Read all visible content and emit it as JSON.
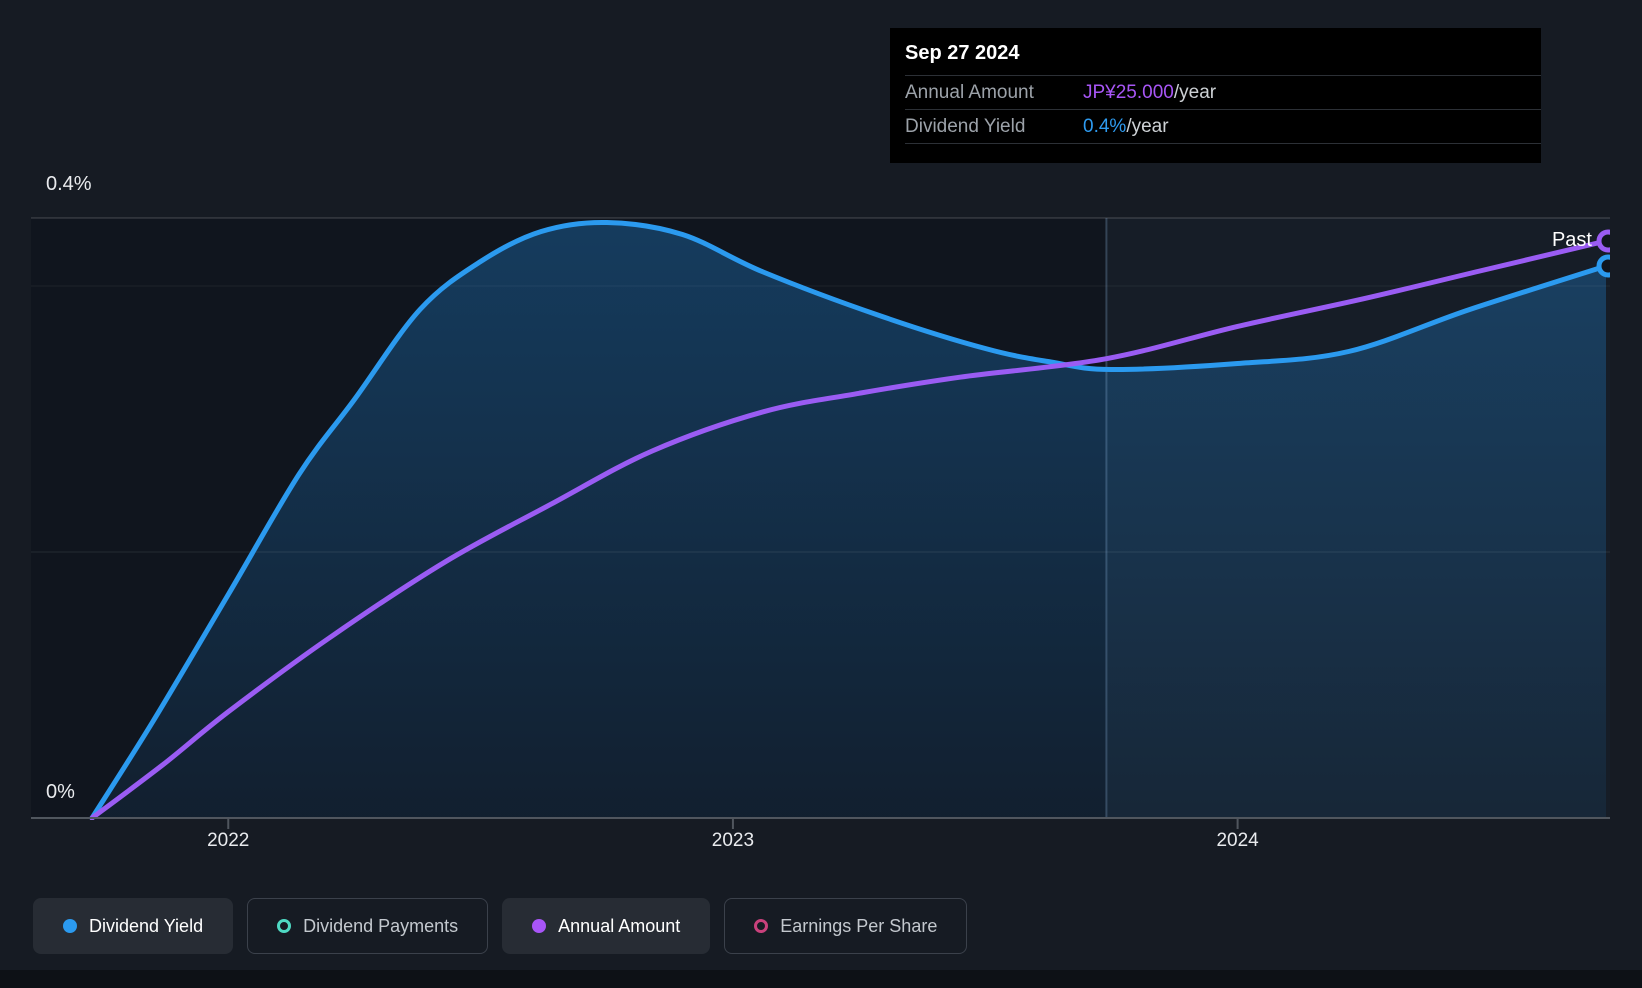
{
  "y_axis": {
    "top_label": "0.4%",
    "bottom_label": "0%"
  },
  "past_label": "Past",
  "tooltip": {
    "date": "Sep 27 2024",
    "rows": [
      {
        "label": "Annual Amount",
        "value": "JP¥25.000",
        "suffix": "/year",
        "color": "#A856F6"
      },
      {
        "label": "Dividend Yield",
        "value": "0.4%",
        "suffix": "/year",
        "color": "#2E9BF0"
      }
    ]
  },
  "legend": [
    {
      "label": "Dividend Yield",
      "color": "#2B9AEF",
      "style": "filled",
      "active": true
    },
    {
      "label": "Dividend Payments",
      "color": "#4FD9C3",
      "style": "ring",
      "active": false
    },
    {
      "label": "Annual Amount",
      "color": "#A855F7",
      "style": "filled",
      "active": true
    },
    {
      "label": "Earnings Per Share",
      "color": "#C9417C",
      "style": "ring",
      "active": false
    }
  ],
  "colors": {
    "background": "#161B23",
    "plot_background": "#10151E",
    "blue_line": "#2E9AEC",
    "purple_line": "#9A5CF3",
    "tooltip_bg": "#000000"
  },
  "chart_data": {
    "type": "line",
    "x_unit": "decimal_year",
    "xlim": [
      2021.73,
      2024.73
    ],
    "x_ticks": [
      2022,
      2023,
      2024
    ],
    "left_axis": {
      "min": 0,
      "max": 0.4,
      "unit": "%",
      "labels_shown": [
        "0%",
        "0.4%"
      ]
    },
    "right_axis": {
      "min": 0,
      "end_value": 25.0,
      "unit": "JP¥/year"
    },
    "series": [
      {
        "name": "Dividend Yield",
        "color": "#2B9AEF",
        "axis": "left",
        "unit": "%",
        "area_fill": true,
        "x": [
          2021.73,
          2021.85,
          2022.0,
          2022.14,
          2022.25,
          2022.38,
          2022.5,
          2022.62,
          2022.75,
          2022.9,
          2023.06,
          2023.29,
          2023.5,
          2023.63,
          2023.75,
          2024.0,
          2024.22,
          2024.46,
          2024.73
        ],
        "values": [
          0,
          0.064,
          0.149,
          0.229,
          0.279,
          0.339,
          0.371,
          0.391,
          0.397,
          0.389,
          0.364,
          0.335,
          0.313,
          0.304,
          0.299,
          0.303,
          0.311,
          0.339,
          0.368
        ]
      },
      {
        "name": "Annual Amount",
        "color": "#9A5CF3",
        "axis": "right",
        "unit": "JP¥/year",
        "area_fill": false,
        "x": [
          2021.73,
          2021.87,
          2022.0,
          2022.2,
          2022.43,
          2022.64,
          2022.84,
          2023.06,
          2023.25,
          2023.45,
          2023.74,
          2024.0,
          2024.25,
          2024.48,
          2024.73
        ],
        "values": [
          0,
          2.3,
          4.6,
          7.8,
          11.1,
          13.6,
          15.9,
          17.6,
          18.4,
          19.1,
          19.9,
          21.3,
          22.5,
          23.7,
          25.0
        ]
      }
    ],
    "annotations": {
      "past_divider_year": 2023.74,
      "past_label": "Past",
      "hover_point": {
        "date": "Sep 27 2024",
        "annual_amount": "JP¥25.000/year",
        "dividend_yield": "0.4%/year"
      }
    },
    "legend_position": "bottom"
  }
}
